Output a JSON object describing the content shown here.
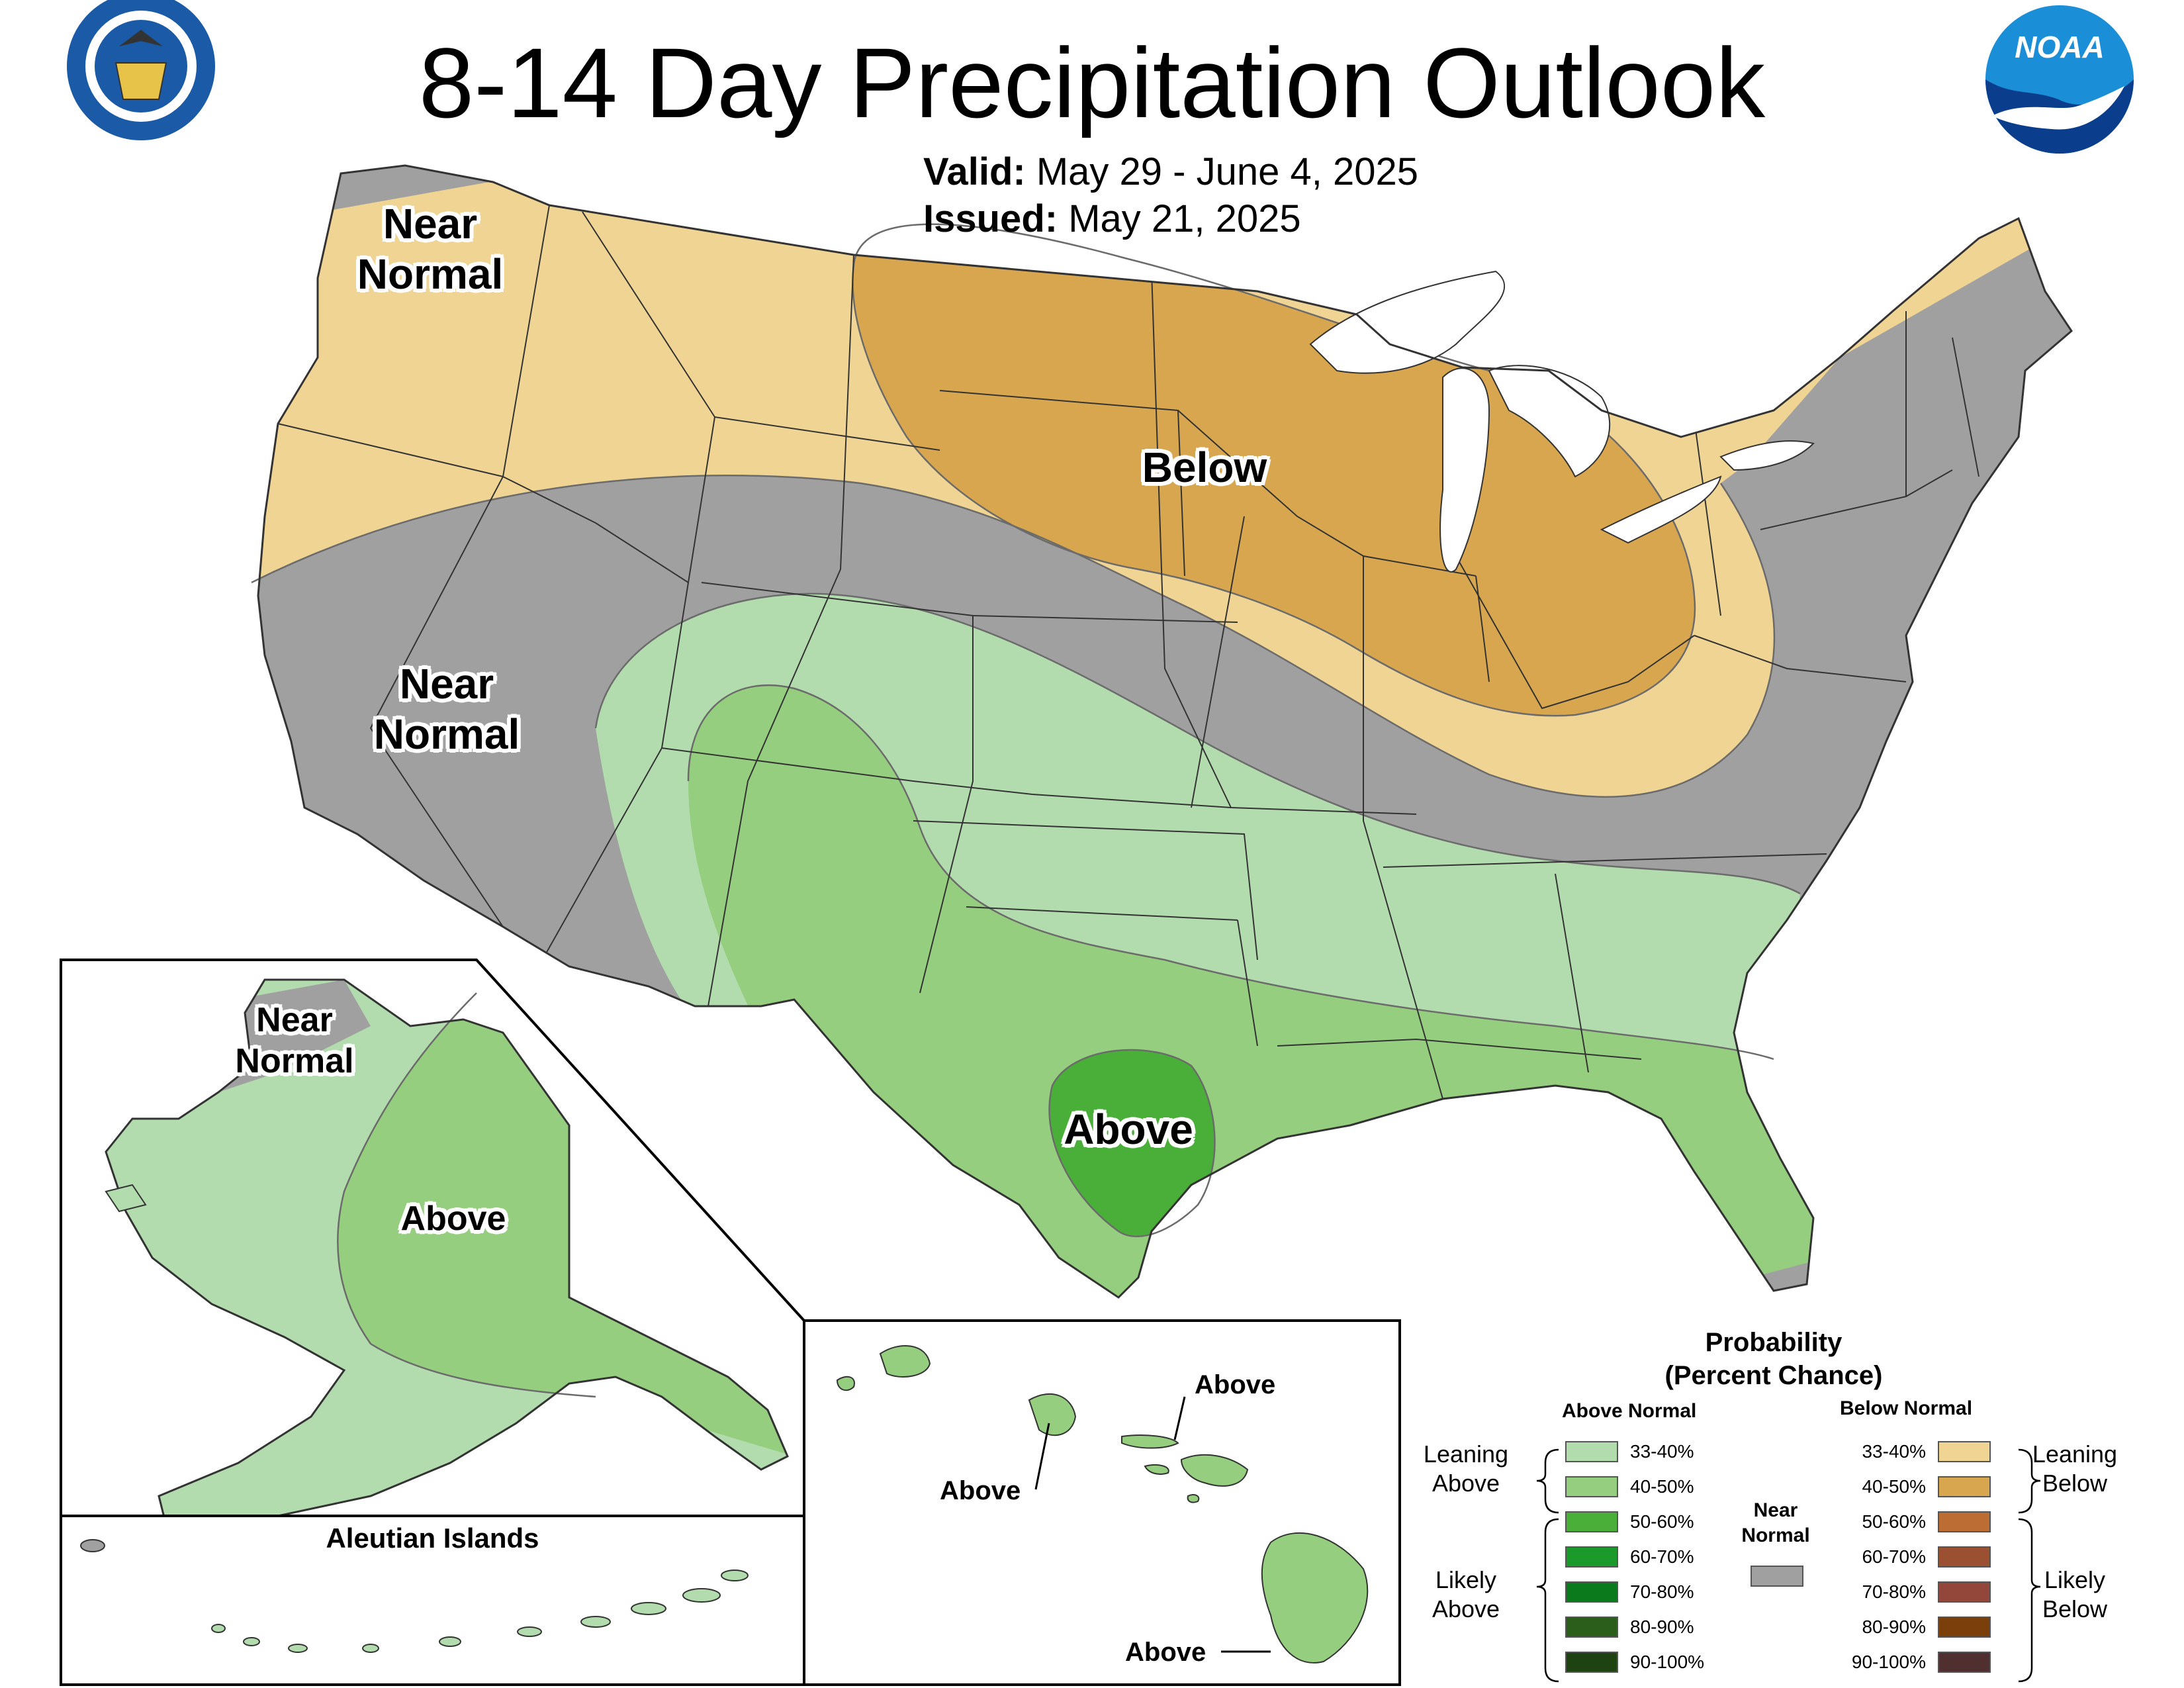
{
  "title": "8-14 Day Precipitation Outlook",
  "valid": {
    "label": "Valid:",
    "value": "May 29 - June 4, 2025"
  },
  "issued": {
    "label": "Issued:",
    "value": "May 21, 2025"
  },
  "map_labels": {
    "pacific_nw": [
      "Near",
      "Normal"
    ],
    "west": [
      "Near",
      "Normal"
    ],
    "north_central": "Below",
    "texas": "Above",
    "alaska_north": [
      "Near",
      "Normal"
    ],
    "alaska": "Above",
    "aleutians": "Aleutian Islands",
    "hawaii_maui": "Above",
    "hawaii_oahu": "Above",
    "hawaii_big_island": "Above"
  },
  "legend": {
    "title": [
      "Probability",
      "(Percent Chance)"
    ],
    "above_header": "Above Normal",
    "below_header": "Below Normal",
    "near_normal": [
      "Near",
      "Normal"
    ],
    "leaning_above": [
      "Leaning",
      "Above"
    ],
    "likely_above": [
      "Likely",
      "Above"
    ],
    "leaning_below": [
      "Leaning",
      "Below"
    ],
    "likely_below": [
      "Likely",
      "Below"
    ],
    "above_bins": [
      {
        "label": "33-40%",
        "color": "#b3dcae"
      },
      {
        "label": "40-50%",
        "color": "#95ce7f"
      },
      {
        "label": "50-60%",
        "color": "#4aaf38"
      },
      {
        "label": "60-70%",
        "color": "#1a9a2a"
      },
      {
        "label": "70-80%",
        "color": "#0b7a1c"
      },
      {
        "label": "80-90%",
        "color": "#2a5e1a"
      },
      {
        "label": "90-100%",
        "color": "#1e4212"
      }
    ],
    "below_bins": [
      {
        "label": "33-40%",
        "color": "#f0d493"
      },
      {
        "label": "40-50%",
        "color": "#d8a64f"
      },
      {
        "label": "50-60%",
        "color": "#bb6d33"
      },
      {
        "label": "60-70%",
        "color": "#9b5031"
      },
      {
        "label": "70-80%",
        "color": "#93473a"
      },
      {
        "label": "80-90%",
        "color": "#7b3f0c"
      },
      {
        "label": "90-100%",
        "color": "#4f2f2f"
      }
    ],
    "near_color": "#a0a0a0"
  },
  "logos": {
    "commerce": "commerce-seal-icon",
    "noaa": "noaa-logo-icon",
    "noaa_text": "NOAA"
  }
}
